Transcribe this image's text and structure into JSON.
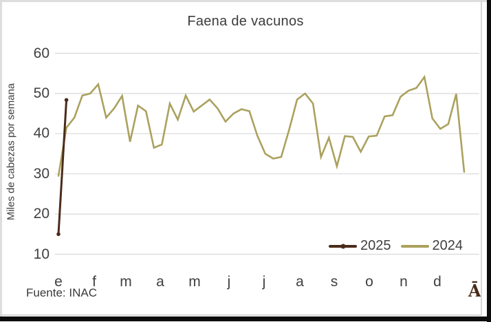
{
  "title": "Faena de vacunos",
  "y_axis": {
    "label": "Miles de cabezas por semana",
    "ticks": [
      "60",
      "50",
      "40",
      "30",
      "20",
      "10"
    ]
  },
  "x_axis": {
    "months": [
      "e",
      "f",
      "m",
      "a",
      "m",
      "j",
      "j",
      "a",
      "s",
      "o",
      "n",
      "d"
    ]
  },
  "legend": [
    {
      "label": "2025",
      "color": "#4A2B1A"
    },
    {
      "label": "2024",
      "color": "#ABA15E"
    }
  ],
  "source": "Fuente: INAC",
  "corner_glyph": "Ā",
  "colors": {
    "series_2025": "#4A2B1A",
    "series_2024": "#ABA15E",
    "gridline": "#D9D9D9",
    "text": "#404040",
    "frame_light": "#DFDCDF",
    "frame_dark": "#0c0c0c"
  },
  "chart_data": {
    "type": "line",
    "title": "Faena de vacunos",
    "xlabel": "",
    "ylabel": "Miles de cabezas por semana",
    "x_unit": "week of year (months e–d = Jan–Dec)",
    "ylim": [
      10,
      60
    ],
    "yticks": [
      10,
      20,
      30,
      40,
      50,
      60
    ],
    "grid": "horizontal",
    "legend_position": "bottom-right",
    "series": [
      {
        "name": "2025",
        "color": "#4A2B1A",
        "markers": true,
        "x": [
          1,
          2
        ],
        "values": [
          15,
          48.4
        ]
      },
      {
        "name": "2024",
        "color": "#ABA15E",
        "markers": false,
        "x": [
          1,
          2,
          3,
          4,
          5,
          6,
          7,
          8,
          9,
          10,
          11,
          12,
          13,
          14,
          15,
          16,
          17,
          18,
          19,
          20,
          21,
          22,
          23,
          24,
          25,
          26,
          27,
          28,
          29,
          30,
          31,
          32,
          33,
          34,
          35,
          36,
          37,
          38,
          39,
          40,
          41,
          42,
          43,
          44,
          45,
          46,
          47,
          48,
          49,
          50,
          51,
          52
        ],
        "values": [
          29.5,
          41.5,
          44,
          49.5,
          50,
          52.3,
          44,
          46.3,
          49.4,
          38,
          47,
          45.6,
          36.5,
          37.3,
          47.5,
          43.5,
          49.5,
          45.5,
          47,
          48.5,
          46.3,
          43,
          45,
          46.1,
          45.6,
          39.5,
          35,
          33.8,
          34.2,
          41,
          48.5,
          50,
          47.5,
          34.2,
          39,
          31.9,
          39.4,
          39.2,
          35.5,
          39.3,
          39.5,
          44.3,
          44.6,
          49.2,
          50.7,
          51.4,
          54.1,
          43.8,
          41.2,
          42.4,
          49.9,
          30.5
        ]
      }
    ]
  }
}
